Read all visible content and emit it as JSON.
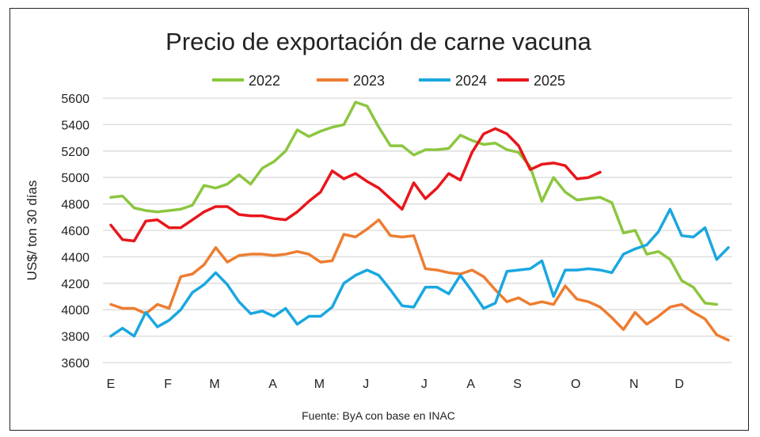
{
  "chart_data": {
    "type": "line",
    "title": "Precio de exportación de carne vacuna",
    "ylabel": "US$/ ton 30 días",
    "xlabel": "",
    "source": "Fuente: ByA con base en INAC",
    "ylim": [
      3600,
      5600
    ],
    "yticks": [
      3600,
      3800,
      4000,
      4200,
      4400,
      4600,
      4800,
      5000,
      5200,
      5400,
      5600
    ],
    "x_unit": "week",
    "xlim": [
      0,
      53
    ],
    "month_ticks": [
      {
        "label": "E",
        "week": 0
      },
      {
        "label": "F",
        "week": 4.9
      },
      {
        "label": "M",
        "week": 8.9
      },
      {
        "label": "A",
        "week": 13.9
      },
      {
        "label": "M",
        "week": 17.9
      },
      {
        "label": "J",
        "week": 21.9
      },
      {
        "label": "J",
        "week": 26.9
      },
      {
        "label": "A",
        "week": 30.9
      },
      {
        "label": "S",
        "week": 34.9
      },
      {
        "label": "O",
        "week": 39.9
      },
      {
        "label": "N",
        "week": 44.9
      },
      {
        "label": "D",
        "week": 48.8
      }
    ],
    "grid": true,
    "legend_position": "top",
    "series": [
      {
        "name": "2022",
        "color": "#8cc63f",
        "values": [
          4850,
          4860,
          4770,
          4750,
          4740,
          4750,
          4760,
          4790,
          4940,
          4920,
          4950,
          5020,
          4950,
          5070,
          5120,
          5200,
          5360,
          5310,
          5350,
          5380,
          5400,
          5570,
          5540,
          5380,
          5240,
          5240,
          5170,
          5210,
          5210,
          5220,
          5320,
          5280,
          5250,
          5260,
          5210,
          5190,
          5080,
          4820,
          5000,
          4890,
          4830,
          4840,
          4850,
          4810,
          4580,
          4600,
          4420,
          4440,
          4380,
          4220,
          4170,
          4050,
          4040
        ]
      },
      {
        "name": "2023",
        "color": "#ed7d31",
        "values": [
          4040,
          4010,
          4010,
          3970,
          4040,
          4010,
          4250,
          4270,
          4340,
          4470,
          4360,
          4410,
          4420,
          4420,
          4410,
          4420,
          4440,
          4420,
          4360,
          4370,
          4570,
          4550,
          4610,
          4680,
          4560,
          4550,
          4560,
          4310,
          4300,
          4280,
          4270,
          4300,
          4250,
          4150,
          4060,
          4090,
          4040,
          4060,
          4040,
          4180,
          4080,
          4060,
          4020,
          3940,
          3850,
          3980,
          3890,
          3950,
          4020,
          4040,
          3980,
          3930,
          3810,
          3770
        ]
      },
      {
        "name": "2024",
        "color": "#1aa7e0",
        "values": [
          3800,
          3860,
          3800,
          3980,
          3870,
          3920,
          4000,
          4130,
          4190,
          4280,
          4190,
          4060,
          3970,
          3990,
          3950,
          4010,
          3890,
          3950,
          3950,
          4020,
          4200,
          4260,
          4300,
          4260,
          4150,
          4030,
          4020,
          4170,
          4170,
          4120,
          4260,
          4140,
          4010,
          4050,
          4290,
          4300,
          4310,
          4370,
          4100,
          4300,
          4300,
          4310,
          4300,
          4280,
          4420,
          4460,
          4490,
          4590,
          4760,
          4560,
          4550,
          4620,
          4380,
          4470
        ]
      },
      {
        "name": "2025",
        "color": "#e8161b",
        "values": [
          4640,
          4530,
          4520,
          4670,
          4680,
          4620,
          4620,
          4680,
          4740,
          4780,
          4780,
          4720,
          4710,
          4710,
          4690,
          4680,
          4740,
          4820,
          4890,
          5050,
          4990,
          5030,
          4970,
          4920,
          4840,
          4760,
          4960,
          4840,
          4920,
          5030,
          4980,
          5190,
          5330,
          5370,
          5330,
          5240,
          5060,
          5100,
          5110,
          5090,
          4990,
          5000,
          5040
        ]
      }
    ]
  }
}
